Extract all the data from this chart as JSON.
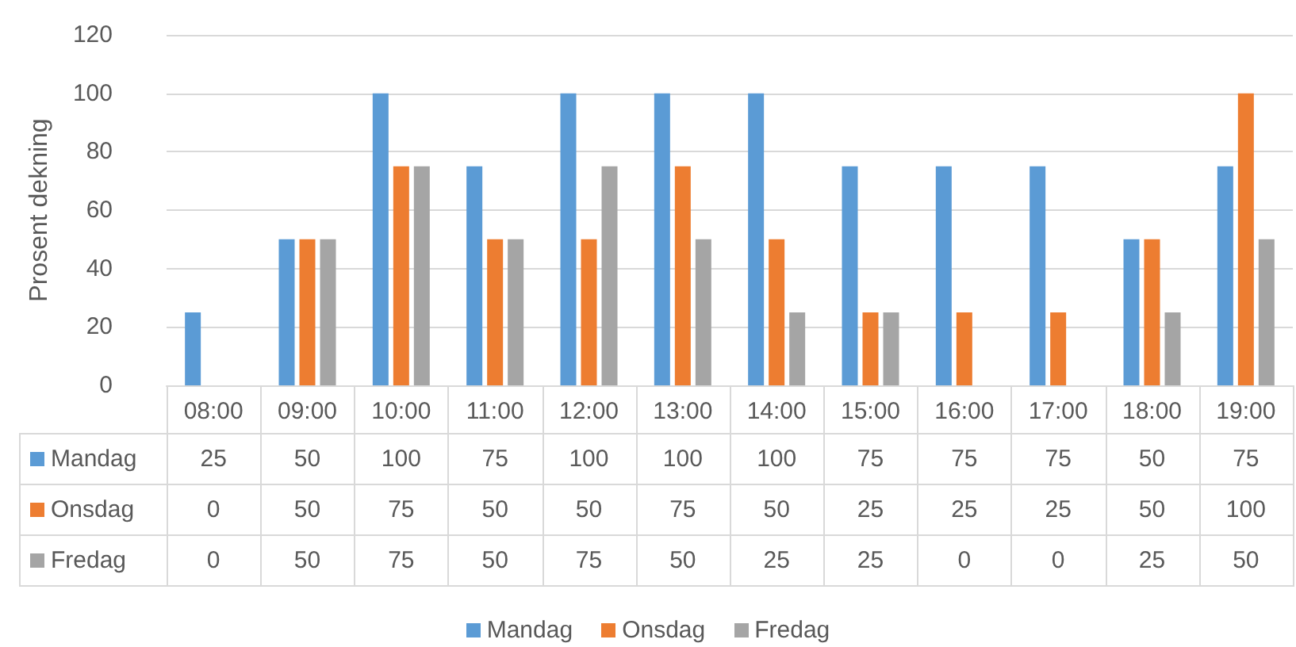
{
  "chart_data": {
    "type": "bar",
    "ylabel": "Prosent dekning",
    "categories": [
      "08:00",
      "09:00",
      "10:00",
      "11:00",
      "12:00",
      "13:00",
      "14:00",
      "15:00",
      "16:00",
      "17:00",
      "18:00",
      "19:00"
    ],
    "series": [
      {
        "name": "Mandag",
        "color": "#5b9bd5",
        "values": [
          25,
          50,
          100,
          75,
          100,
          100,
          100,
          75,
          75,
          75,
          50,
          75
        ]
      },
      {
        "name": "Onsdag",
        "color": "#ed7d31",
        "values": [
          0,
          50,
          75,
          50,
          50,
          75,
          50,
          25,
          25,
          25,
          50,
          100
        ]
      },
      {
        "name": "Fredag",
        "color": "#a5a5a5",
        "values": [
          0,
          50,
          75,
          50,
          75,
          50,
          25,
          25,
          0,
          0,
          25,
          50
        ]
      }
    ],
    "ylim": [
      0,
      120
    ],
    "yticks": [
      0,
      20,
      40,
      60,
      80,
      100,
      120
    ],
    "grid": "y",
    "legend": "bottom",
    "data_labels": true
  }
}
